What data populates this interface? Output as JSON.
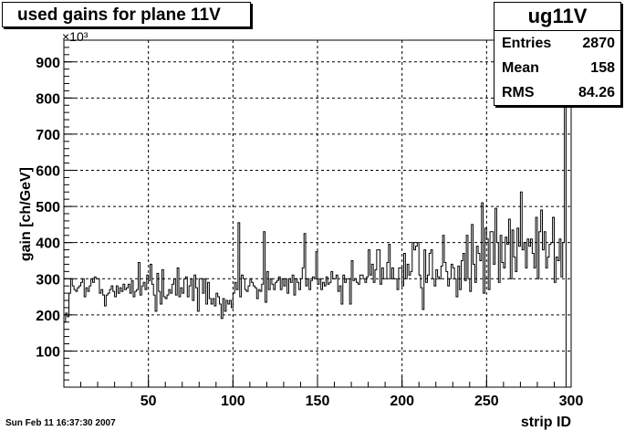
{
  "chart_data": {
    "type": "histogram",
    "title": "used gains for plane 11V",
    "xlabel": "strip ID",
    "ylabel": "gain [ch/GeV]",
    "y_multiplier_label": "×10³",
    "xlim": [
      0,
      300
    ],
    "ylim": [
      0,
      960000
    ],
    "x_ticks": [
      50,
      100,
      150,
      200,
      250,
      300
    ],
    "y_ticks": [
      100,
      200,
      300,
      400,
      500,
      600,
      700,
      800,
      900
    ],
    "grid": true,
    "stats": {
      "name": "ug11V",
      "entries_label": "Entries",
      "entries": "2870",
      "mean_label": "Mean",
      "mean": "158",
      "rms_label": "RMS",
      "rms": "84.26"
    },
    "bin_width": 1,
    "values": [
      180000,
      205000,
      195000,
      260000,
      300000,
      280000,
      270000,
      265000,
      275000,
      280000,
      290000,
      300000,
      250000,
      275000,
      265000,
      280000,
      300000,
      290000,
      305000,
      300000,
      300000,
      260000,
      270000,
      255000,
      225000,
      255000,
      260000,
      270000,
      280000,
      265000,
      250000,
      280000,
      260000,
      275000,
      265000,
      285000,
      270000,
      275000,
      285000,
      260000,
      295000,
      250000,
      265000,
      270000,
      345000,
      255000,
      280000,
      290000,
      270000,
      310000,
      295000,
      340000,
      285000,
      255000,
      210000,
      315000,
      265000,
      230000,
      325000,
      250000,
      245000,
      255000,
      270000,
      260000,
      285000,
      300000,
      255000,
      330000,
      250000,
      275000,
      260000,
      300000,
      305000,
      250000,
      280000,
      300000,
      240000,
      310000,
      275000,
      210000,
      300000,
      300000,
      260000,
      300000,
      230000,
      290000,
      245000,
      230000,
      245000,
      225000,
      260000,
      250000,
      230000,
      190000,
      245000,
      210000,
      240000,
      230000,
      240000,
      220000,
      260000,
      290000,
      270000,
      455000,
      250000,
      310000,
      300000,
      270000,
      265000,
      280000,
      300000,
      290000,
      280000,
      275000,
      245000,
      270000,
      265000,
      285000,
      430000,
      235000,
      320000,
      270000,
      300000,
      285000,
      270000,
      290000,
      295000,
      305000,
      270000,
      300000,
      280000,
      300000,
      260000,
      300000,
      290000,
      310000,
      255000,
      300000,
      290000,
      270000,
      300000,
      330000,
      425000,
      280000,
      300000,
      270000,
      295000,
      305000,
      300000,
      375000,
      285000,
      300000,
      270000,
      290000,
      280000,
      305000,
      285000,
      290000,
      320000,
      300000,
      300000,
      310000,
      265000,
      280000,
      230000,
      310000,
      290000,
      300000,
      300000,
      230000,
      350000,
      295000,
      300000,
      290000,
      285000,
      310000,
      310000,
      300000,
      290000,
      305000,
      380000,
      310000,
      340000,
      290000,
      325000,
      380000,
      380000,
      285000,
      330000,
      300000,
      300000,
      345000,
      395000,
      300000,
      330000,
      300000,
      300000,
      270000,
      330000,
      330000,
      280000,
      370000,
      300000,
      340000,
      310000,
      320000,
      400000,
      380000,
      390000,
      400000,
      310000,
      275000,
      215000,
      380000,
      290000,
      310000,
      370000,
      380000,
      300000,
      280000,
      325000,
      305000,
      300000,
      335000,
      420000,
      345000,
      320000,
      280000,
      300000,
      340000,
      330000,
      300000,
      250000,
      335000,
      270000,
      350000,
      370000,
      295000,
      420000,
      300000,
      265000,
      450000,
      340000,
      290000,
      390000,
      370000,
      350000,
      510000,
      260000,
      440000,
      410000,
      270000,
      430000,
      430000,
      340000,
      495000,
      400000,
      290000,
      420000,
      345000,
      330000,
      415000,
      395000,
      465000,
      300000,
      435000,
      360000,
      320000,
      440000,
      390000,
      540000,
      380000,
      400000,
      330000,
      410000,
      390000,
      410000,
      370000,
      330000,
      470000,
      300000,
      430000,
      490000,
      380000,
      430000,
      330000,
      360000,
      395000,
      400000,
      470000,
      290000,
      360000,
      350000,
      410000,
      305000,
      400000,
      930000
    ]
  }
}
